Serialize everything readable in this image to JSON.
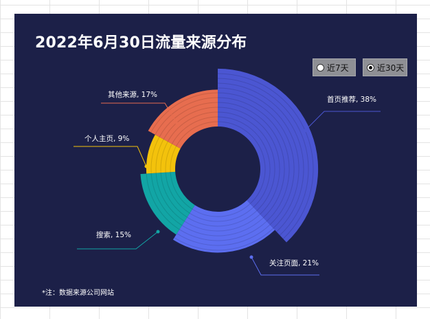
{
  "title": "2022年6月30日流量来源分布",
  "footnote": "*注：数据来源公司网站",
  "period_options": [
    {
      "label": "近7天",
      "selected": false
    },
    {
      "label": "近30天",
      "selected": true
    }
  ],
  "colors": {
    "background": "#1c2048",
    "grid": "#e3e3e3",
    "text": "#ffffff"
  },
  "chart_data": {
    "type": "pie",
    "variant": "rose-donut",
    "title": "2022年6月30日流量来源分布",
    "start": "top, clockwise",
    "slices": [
      {
        "name": "首页推荐",
        "value": 38,
        "label": "首页推荐, 38%",
        "color": "#4b56d2"
      },
      {
        "name": "关注页面",
        "value": 21,
        "label": "关注页面, 21%",
        "color": "#5c6ef0"
      },
      {
        "name": "搜索",
        "value": 15,
        "label": "搜索, 15%",
        "color": "#12a5a5"
      },
      {
        "name": "个人主页",
        "value": 9,
        "label": "个人主页, 9%",
        "color": "#f3c20c"
      },
      {
        "name": "其他来源",
        "value": 17,
        "label": "其他来源, 17%",
        "color": "#e76d4f"
      }
    ]
  }
}
